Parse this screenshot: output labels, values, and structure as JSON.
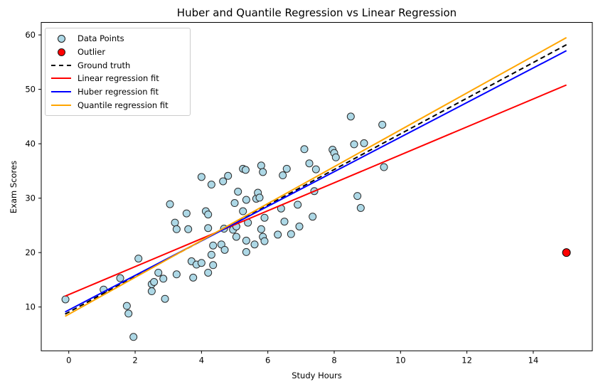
{
  "chart_data": {
    "type": "scatter",
    "title": "Huber and Quantile Regression vs Linear Regression",
    "xlabel": "Study Hours",
    "ylabel": "Exam Scores",
    "xlim": [
      -0.83,
      15.78
    ],
    "ylim": [
      1.95,
      62.3
    ],
    "xticks": [
      0,
      2,
      4,
      6,
      8,
      10,
      12,
      14
    ],
    "yticks": [
      10,
      20,
      30,
      40,
      50,
      60
    ],
    "grid": false,
    "legend_position": "upper-left",
    "frame_color": "#000000",
    "series": [
      {
        "name": "Data Points",
        "type": "scatter",
        "color": "#ADD8E6",
        "edge": "#2b2b2b",
        "marker_radius": 5,
        "points": [
          [
            -0.1,
            11.4
          ],
          [
            1.05,
            13.2
          ],
          [
            1.55,
            15.3
          ],
          [
            1.75,
            10.2
          ],
          [
            1.8,
            8.8
          ],
          [
            1.95,
            4.5
          ],
          [
            2.1,
            18.9
          ],
          [
            2.5,
            14.2
          ],
          [
            2.57,
            14.6
          ],
          [
            2.5,
            12.9
          ],
          [
            2.7,
            16.3
          ],
          [
            2.85,
            15.2
          ],
          [
            2.9,
            11.5
          ],
          [
            3.05,
            28.9
          ],
          [
            3.2,
            25.5
          ],
          [
            3.25,
            24.3
          ],
          [
            3.25,
            16.0
          ],
          [
            3.55,
            27.2
          ],
          [
            3.6,
            24.3
          ],
          [
            3.7,
            18.4
          ],
          [
            3.85,
            17.8
          ],
          [
            4.0,
            18.1
          ],
          [
            3.75,
            15.4
          ],
          [
            4.0,
            33.9
          ],
          [
            4.13,
            27.6
          ],
          [
            4.2,
            27.0
          ],
          [
            4.2,
            24.5
          ],
          [
            4.2,
            16.3
          ],
          [
            4.3,
            32.5
          ],
          [
            4.3,
            19.6
          ],
          [
            4.35,
            21.3
          ],
          [
            4.35,
            17.7
          ],
          [
            4.6,
            21.5
          ],
          [
            4.65,
            33.1
          ],
          [
            4.68,
            24.4
          ],
          [
            4.7,
            20.5
          ],
          [
            4.8,
            34.1
          ],
          [
            4.95,
            24.2
          ],
          [
            5.0,
            29.1
          ],
          [
            5.05,
            24.8
          ],
          [
            5.05,
            22.9
          ],
          [
            5.1,
            31.2
          ],
          [
            5.25,
            35.4
          ],
          [
            5.33,
            35.2
          ],
          [
            5.25,
            27.6
          ],
          [
            5.35,
            29.7
          ],
          [
            5.35,
            22.2
          ],
          [
            5.35,
            20.1
          ],
          [
            5.4,
            25.5
          ],
          [
            5.6,
            21.5
          ],
          [
            5.65,
            29.9
          ],
          [
            5.7,
            31.0
          ],
          [
            5.75,
            30.1
          ],
          [
            5.8,
            36.0
          ],
          [
            5.8,
            24.3
          ],
          [
            5.85,
            34.8
          ],
          [
            5.85,
            22.9
          ],
          [
            5.9,
            26.4
          ],
          [
            5.9,
            22.1
          ],
          [
            6.3,
            23.3
          ],
          [
            6.4,
            28.1
          ],
          [
            6.45,
            34.2
          ],
          [
            6.5,
            25.7
          ],
          [
            6.57,
            35.4
          ],
          [
            6.7,
            23.4
          ],
          [
            6.9,
            28.8
          ],
          [
            6.95,
            24.8
          ],
          [
            7.1,
            39.0
          ],
          [
            7.25,
            36.4
          ],
          [
            7.35,
            26.6
          ],
          [
            7.4,
            31.3
          ],
          [
            7.45,
            35.3
          ],
          [
            7.95,
            38.9
          ],
          [
            8.0,
            38.3
          ],
          [
            8.05,
            37.5
          ],
          [
            8.5,
            45.0
          ],
          [
            8.6,
            39.9
          ],
          [
            8.7,
            30.4
          ],
          [
            8.8,
            28.2
          ],
          [
            8.9,
            40.1
          ],
          [
            9.45,
            43.5
          ],
          [
            9.5,
            35.7
          ]
        ]
      },
      {
        "name": "Outlier",
        "type": "scatter",
        "color": "#FF0000",
        "edge": "#000000",
        "marker_radius": 5.5,
        "points": [
          [
            15,
            20
          ]
        ]
      },
      {
        "name": "Ground truth",
        "type": "line",
        "style": "dashed",
        "color": "#000000",
        "width": 2,
        "x": [
          -0.11,
          15.0
        ],
        "y": [
          8.7,
          58.2
        ]
      },
      {
        "name": "Linear regression fit",
        "type": "line",
        "style": "solid",
        "color": "#FF0000",
        "width": 2,
        "x": [
          -0.11,
          15.0
        ],
        "y": [
          12.0,
          50.8
        ]
      },
      {
        "name": "Huber regression fit",
        "type": "line",
        "style": "solid",
        "color": "#0000FF",
        "width": 2,
        "x": [
          -0.11,
          15.0
        ],
        "y": [
          9.1,
          57.1
        ]
      },
      {
        "name": "Quantile regression fit",
        "type": "line",
        "style": "solid",
        "color": "#FFA500",
        "width": 2,
        "x": [
          -0.11,
          15.0
        ],
        "y": [
          8.3,
          59.5
        ]
      }
    ]
  }
}
